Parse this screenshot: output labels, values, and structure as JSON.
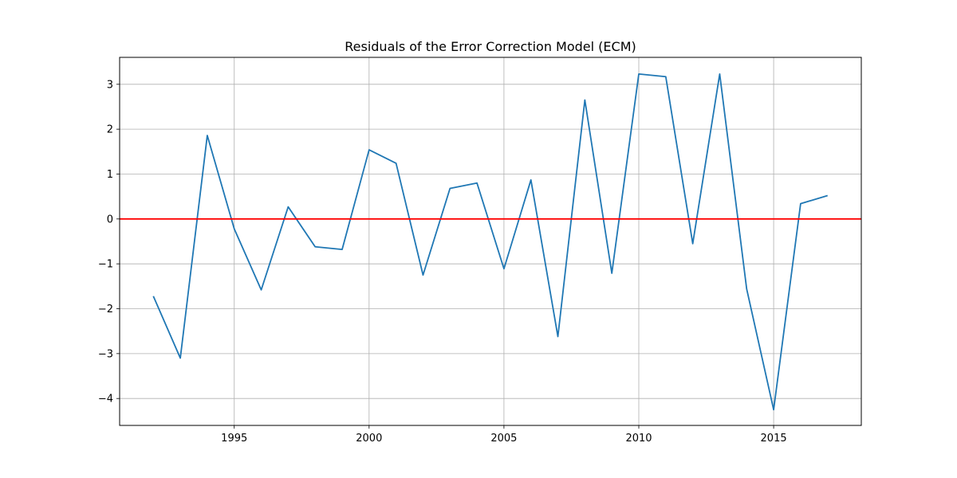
{
  "chart_data": {
    "type": "line",
    "title": "Residuals of the Error Correction Model (ECM)",
    "xlabel": "",
    "ylabel": "",
    "xlim": [
      1990.75,
      2018.25
    ],
    "ylim": [
      -4.6,
      3.6
    ],
    "xticks": [
      1995,
      2000,
      2005,
      2010,
      2015
    ],
    "yticks": [
      3,
      2,
      1,
      0,
      -1,
      -2,
      -3,
      -4
    ],
    "ytick_labels": [
      "3",
      "2",
      "1",
      "0",
      "−1",
      "−2",
      "−3",
      "−4"
    ],
    "grid": true,
    "series": [
      {
        "color": "#1f77b4",
        "x": [
          1992,
          1993,
          1994,
          1995,
          1996,
          1997,
          1998,
          1999,
          2000,
          2001,
          2002,
          2003,
          2004,
          2005,
          2006,
          2007,
          2008,
          2009,
          2010,
          2011,
          2012,
          2013,
          2014,
          2015,
          2016,
          2017
        ],
        "y": [
          -1.72,
          -3.1,
          1.86,
          -0.22,
          -1.58,
          0.27,
          -0.62,
          -0.68,
          1.54,
          1.24,
          -1.25,
          0.68,
          0.8,
          -1.11,
          0.87,
          -2.62,
          2.65,
          -1.21,
          3.23,
          3.17,
          -0.55,
          3.23,
          -1.56,
          -4.25,
          0.34,
          0.52
        ]
      }
    ],
    "hlines": [
      {
        "y": 0,
        "color": "#ff0000"
      }
    ]
  }
}
